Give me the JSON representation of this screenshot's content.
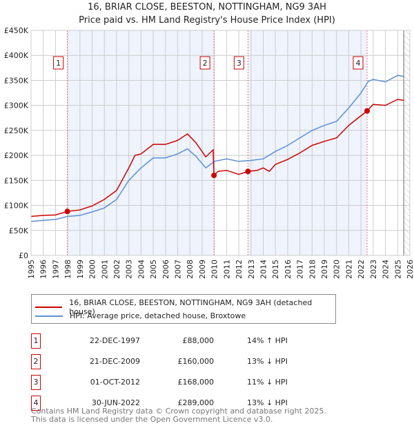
{
  "chart_data": {
    "type": "line",
    "title": "16, BRIAR CLOSE, BEESTON, NOTTINGHAM, NG9 3AH",
    "subtitle": "Price paid vs. HM Land Registry's House Price Index (HPI)",
    "xlim": [
      1995,
      2026
    ],
    "ylim": [
      0,
      450000
    ],
    "x_ticks": [
      "1995",
      "1996",
      "1997",
      "1998",
      "1999",
      "2000",
      "2001",
      "2002",
      "2003",
      "2004",
      "2005",
      "2006",
      "2007",
      "2008",
      "2009",
      "2010",
      "2011",
      "2012",
      "2013",
      "2014",
      "2015",
      "2016",
      "2017",
      "2018",
      "2019",
      "2020",
      "2021",
      "2022",
      "2023",
      "2024",
      "2025",
      "2026"
    ],
    "y_ticks": [
      {
        "v": 0,
        "label": "£0"
      },
      {
        "v": 50000,
        "label": "£50K"
      },
      {
        "v": 100000,
        "label": "£100K"
      },
      {
        "v": 150000,
        "label": "£150K"
      },
      {
        "v": 200000,
        "label": "£200K"
      },
      {
        "v": 250000,
        "label": "£250K"
      },
      {
        "v": 300000,
        "label": "£300K"
      },
      {
        "v": 350000,
        "label": "£350K"
      },
      {
        "v": 400000,
        "label": "£400K"
      },
      {
        "v": 450000,
        "label": "£450K"
      }
    ],
    "shaded_ranges": [
      [
        1997.97,
        2009.97
      ],
      [
        2012.75,
        2022.5
      ]
    ],
    "forecast_from": 2025.5,
    "series": [
      {
        "name": "16, BRIAR CLOSE, BEESTON, NOTTINGHAM, NG9 3AH (detached house)",
        "color": "#cc0000",
        "x": [
          1995,
          1996,
          1997,
          1997.97,
          1999,
          2000,
          2001,
          2002,
          2003,
          2003.5,
          2004,
          2005,
          2006,
          2007,
          2007.8,
          2008.5,
          2009.3,
          2009.9,
          2009.97,
          2010.3,
          2011,
          2012,
          2012.75,
          2013.5,
          2014,
          2014.5,
          2015,
          2016,
          2017,
          2018,
          2019,
          2020,
          2021,
          2022.5,
          2023,
          2024,
          2025,
          2025.5
        ],
        "y": [
          78000,
          80000,
          81000,
          88000,
          91000,
          99000,
          112000,
          130000,
          175000,
          200000,
          203000,
          222000,
          222000,
          230000,
          243000,
          225000,
          197000,
          211000,
          160000,
          168000,
          170000,
          162000,
          168000,
          170000,
          175000,
          168000,
          182000,
          192000,
          205000,
          220000,
          228000,
          235000,
          260000,
          289000,
          302000,
          300000,
          312000,
          310000
        ]
      },
      {
        "name": "HPI: Average price, detached house, Broxtowe",
        "color": "#5b8fd4",
        "x": [
          1995,
          1996,
          1997,
          1998,
          1999,
          2000,
          2001,
          2002,
          2003,
          2004,
          2005,
          2006,
          2007,
          2007.8,
          2008.5,
          2009.3,
          2010,
          2011,
          2012,
          2013,
          2014,
          2015,
          2016,
          2017,
          2018,
          2019,
          2020,
          2021,
          2022,
          2022.6,
          2023,
          2024,
          2025,
          2025.5
        ],
        "y": [
          68000,
          70000,
          72000,
          78000,
          80000,
          87000,
          95000,
          112000,
          150000,
          175000,
          195000,
          195000,
          203000,
          213000,
          198000,
          175000,
          188000,
          193000,
          188000,
          190000,
          193000,
          208000,
          220000,
          235000,
          250000,
          260000,
          268000,
          295000,
          325000,
          348000,
          352000,
          347000,
          360000,
          358000
        ]
      }
    ],
    "sales": [
      {
        "num": "1",
        "x": 1997.97,
        "y": 88000,
        "date": "22-DEC-1997",
        "price": "£88,000",
        "hpi": "14% ↑ HPI"
      },
      {
        "num": "2",
        "x": 2009.97,
        "y": 160000,
        "date": "21-DEC-2009",
        "price": "£160,000",
        "hpi": "13% ↓ HPI"
      },
      {
        "num": "3",
        "x": 2012.75,
        "y": 168000,
        "date": "01-OCT-2012",
        "price": "£168,000",
        "hpi": "11% ↓ HPI"
      },
      {
        "num": "4",
        "x": 2022.5,
        "y": 289000,
        "date": "30-JUN-2022",
        "price": "£289,000",
        "hpi": "13% ↓ HPI"
      }
    ]
  },
  "footer": {
    "line1": "Contains HM Land Registry data © Crown copyright and database right 2025.",
    "line2": "This data is licensed under the Open Government Licence v3.0."
  }
}
